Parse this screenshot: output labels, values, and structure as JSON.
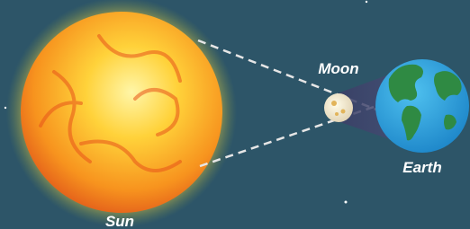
{
  "labels": {
    "moon": "Moon",
    "earth": "Earth",
    "sun": "Sun"
  }
}
